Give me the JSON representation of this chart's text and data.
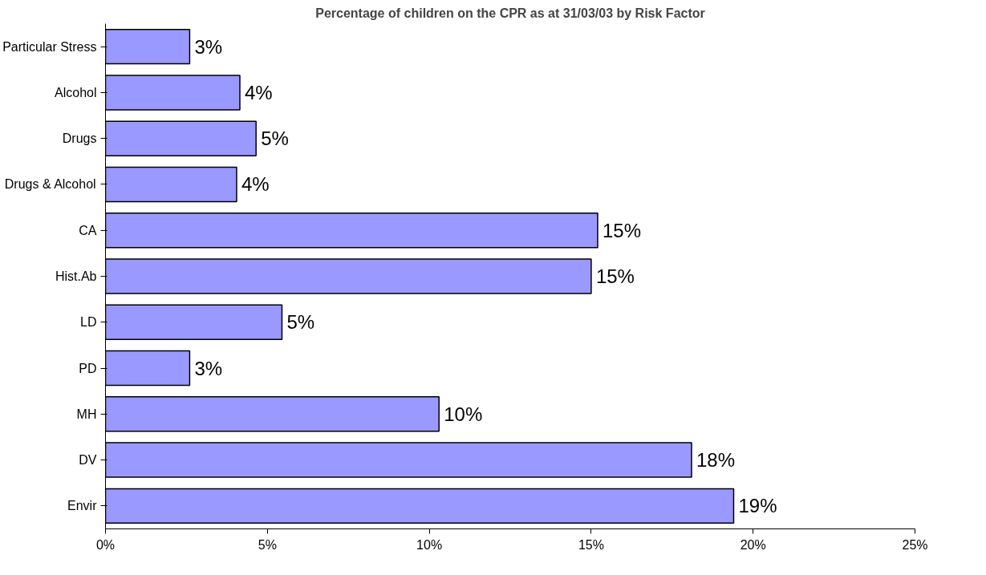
{
  "chart_data": {
    "type": "bar",
    "orientation": "horizontal",
    "title": "Percentage of children on the CPR as at 31/03/03 by Risk Factor",
    "categories": [
      "Particular Stress",
      "Alcohol",
      "Drugs",
      "Drugs & Alcohol",
      "CA",
      "Hist.Ab",
      "LD",
      "PD",
      "MH",
      "DV",
      "Envir"
    ],
    "values": [
      2.6,
      4.15,
      4.65,
      4.05,
      15.2,
      15.0,
      5.45,
      2.6,
      10.3,
      18.1,
      19.4
    ],
    "value_labels": [
      "3%",
      "4%",
      "5%",
      "4%",
      "15%",
      "15%",
      "5%",
      "3%",
      "10%",
      "18%",
      "19%"
    ],
    "color": "#9999ff",
    "xlim": [
      0,
      25
    ],
    "xticks": [
      {
        "value": 0,
        "label": "0%"
      },
      {
        "value": 5,
        "label": "5%"
      },
      {
        "value": 10,
        "label": "10%"
      },
      {
        "value": 15,
        "label": "15%"
      },
      {
        "value": 20,
        "label": "20%"
      },
      {
        "value": 25,
        "label": "25%"
      }
    ],
    "grid": false
  }
}
